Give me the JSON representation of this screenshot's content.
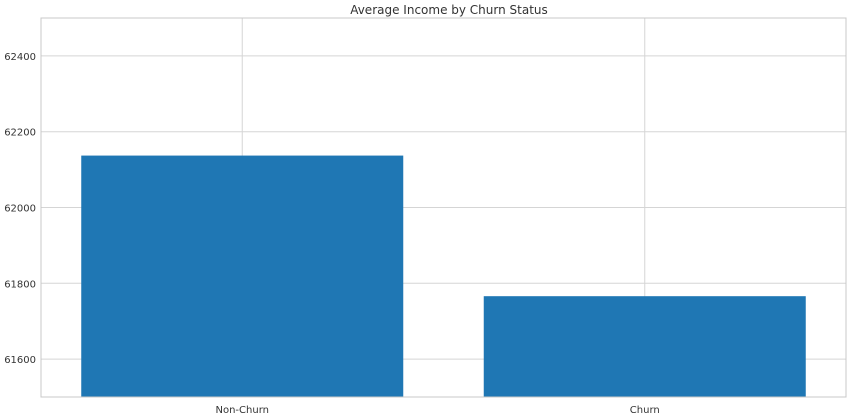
{
  "chart_data": {
    "type": "bar",
    "title": "Average Income by Churn Status",
    "xlabel": "",
    "ylabel": "",
    "categories": [
      "Non-Churn",
      "Churn"
    ],
    "values": [
      62137,
      61766
    ],
    "ylim": [
      61500,
      62500
    ],
    "yticks": [
      61600,
      61800,
      62000,
      62200,
      62400
    ],
    "ytick_labels": [
      "61600",
      "61800",
      "62000",
      "62200",
      "62400"
    ],
    "grid": true,
    "legend": "none",
    "colors": {
      "bar": "#1f77b4",
      "grid": "#d5d5d5",
      "spine": "#c8c8c8",
      "text": "#333333"
    }
  }
}
